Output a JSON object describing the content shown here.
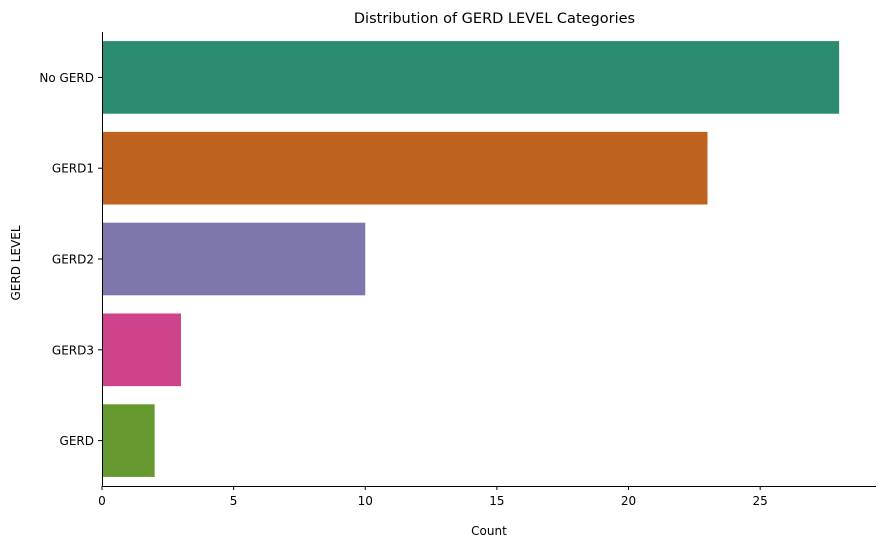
{
  "chart_data": {
    "type": "bar",
    "orientation": "horizontal",
    "title": "Distribution of GERD LEVEL Categories",
    "xlabel": "Count",
    "ylabel": "GERD LEVEL",
    "categories": [
      "No GERD",
      "GERD1",
      "GERD2",
      "GERD3",
      "GERD"
    ],
    "values": [
      28,
      23,
      10,
      3,
      2
    ],
    "colors": [
      "#2b8c71",
      "#bd621f",
      "#7d77ab",
      "#cf438c",
      "#65982f"
    ],
    "xlim": [
      0,
      29.4
    ],
    "xticks": [
      0,
      5,
      10,
      15,
      20,
      25
    ],
    "grid": false
  }
}
